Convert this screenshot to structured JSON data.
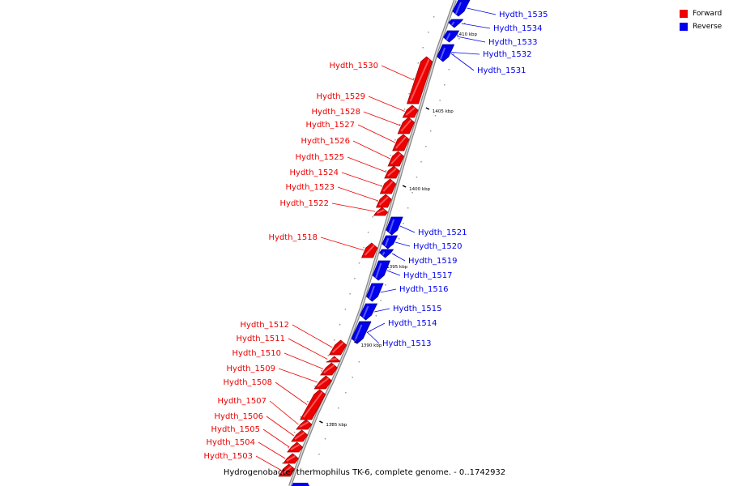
{
  "legend": {
    "items": [
      {
        "label": "Forward",
        "color": "#ee0000"
      },
      {
        "label": "Reverse",
        "color": "#0000ee"
      }
    ]
  },
  "caption": "Hydrogenobacter thermophilus TK-6, complete genome. - 0..1742932",
  "scale_ticks": [
    {
      "label": "1410 kbp",
      "pos": 1410
    },
    {
      "label": "1405 kbp",
      "pos": 1405
    },
    {
      "label": "1400 kbp",
      "pos": 1400
    },
    {
      "label": "1395 kbp",
      "pos": 1395
    },
    {
      "label": "1390 kbp",
      "pos": 1390
    },
    {
      "label": "1385 kbp",
      "pos": 1385
    }
  ],
  "genes": [
    {
      "name": "Hydth_1535",
      "strand": "reverse"
    },
    {
      "name": "Hydth_1534",
      "strand": "reverse"
    },
    {
      "name": "Hydth_1533",
      "strand": "reverse"
    },
    {
      "name": "Hydth_1532",
      "strand": "reverse"
    },
    {
      "name": "Hydth_1531",
      "strand": "reverse"
    },
    {
      "name": "Hydth_1530",
      "strand": "forward"
    },
    {
      "name": "Hydth_1529",
      "strand": "forward"
    },
    {
      "name": "Hydth_1528",
      "strand": "forward"
    },
    {
      "name": "Hydth_1527",
      "strand": "forward"
    },
    {
      "name": "Hydth_1526",
      "strand": "forward"
    },
    {
      "name": "Hydth_1525",
      "strand": "forward"
    },
    {
      "name": "Hydth_1524",
      "strand": "forward"
    },
    {
      "name": "Hydth_1523",
      "strand": "forward"
    },
    {
      "name": "Hydth_1522",
      "strand": "forward"
    },
    {
      "name": "Hydth_1521",
      "strand": "reverse"
    },
    {
      "name": "Hydth_1520",
      "strand": "reverse"
    },
    {
      "name": "Hydth_1519",
      "strand": "reverse"
    },
    {
      "name": "Hydth_1518",
      "strand": "forward"
    },
    {
      "name": "Hydth_1517",
      "strand": "reverse"
    },
    {
      "name": "Hydth_1516",
      "strand": "reverse"
    },
    {
      "name": "Hydth_1515",
      "strand": "reverse"
    },
    {
      "name": "Hydth_1514",
      "strand": "reverse"
    },
    {
      "name": "Hydth_1513",
      "strand": "reverse"
    },
    {
      "name": "Hydth_1512",
      "strand": "forward"
    },
    {
      "name": "Hydth_1511",
      "strand": "forward"
    },
    {
      "name": "Hydth_1510",
      "strand": "forward"
    },
    {
      "name": "Hydth_1509",
      "strand": "forward"
    },
    {
      "name": "Hydth_1508",
      "strand": "forward"
    },
    {
      "name": "Hydth_1507",
      "strand": "forward"
    },
    {
      "name": "Hydth_1506",
      "strand": "forward"
    },
    {
      "name": "Hydth_1505",
      "strand": "forward"
    },
    {
      "name": "Hydth_1504",
      "strand": "forward"
    },
    {
      "name": "Hydth_1503",
      "strand": "forward"
    }
  ]
}
